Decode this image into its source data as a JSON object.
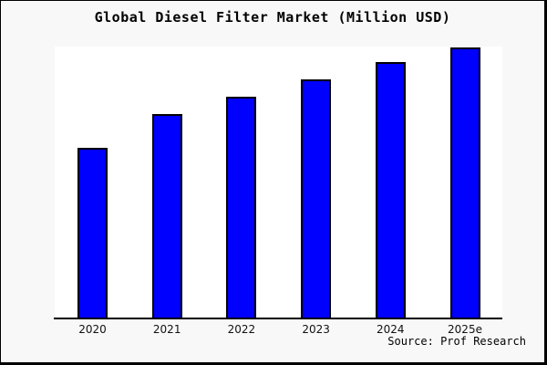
{
  "figure": {
    "background": "#f8f8f8",
    "border_color": "#000000",
    "plot_background": "#ffffff"
  },
  "chart_data": {
    "type": "bar",
    "title": "Global Diesel Filter Market (Million USD)",
    "unit": "Million USD",
    "categories": [
      "2020",
      "2021",
      "2022",
      "2023",
      "2024",
      "2025e"
    ],
    "values": [
      63.1,
      75.5,
      81.9,
      88.2,
      94.6,
      100.0
    ],
    "value_note": "no numeric y-axis shown in image; values are relative, normalized to tallest bar (2025e) = 100",
    "xlabel": "",
    "ylabel": "",
    "ylim": [
      0,
      100.3
    ],
    "grid": false,
    "legend": false,
    "y_axis_visible": false,
    "bar_color": "#0000ff",
    "bar_border_color": "#000000",
    "axis_color": "#000000"
  },
  "source": {
    "text": "Source: Prof Research"
  }
}
